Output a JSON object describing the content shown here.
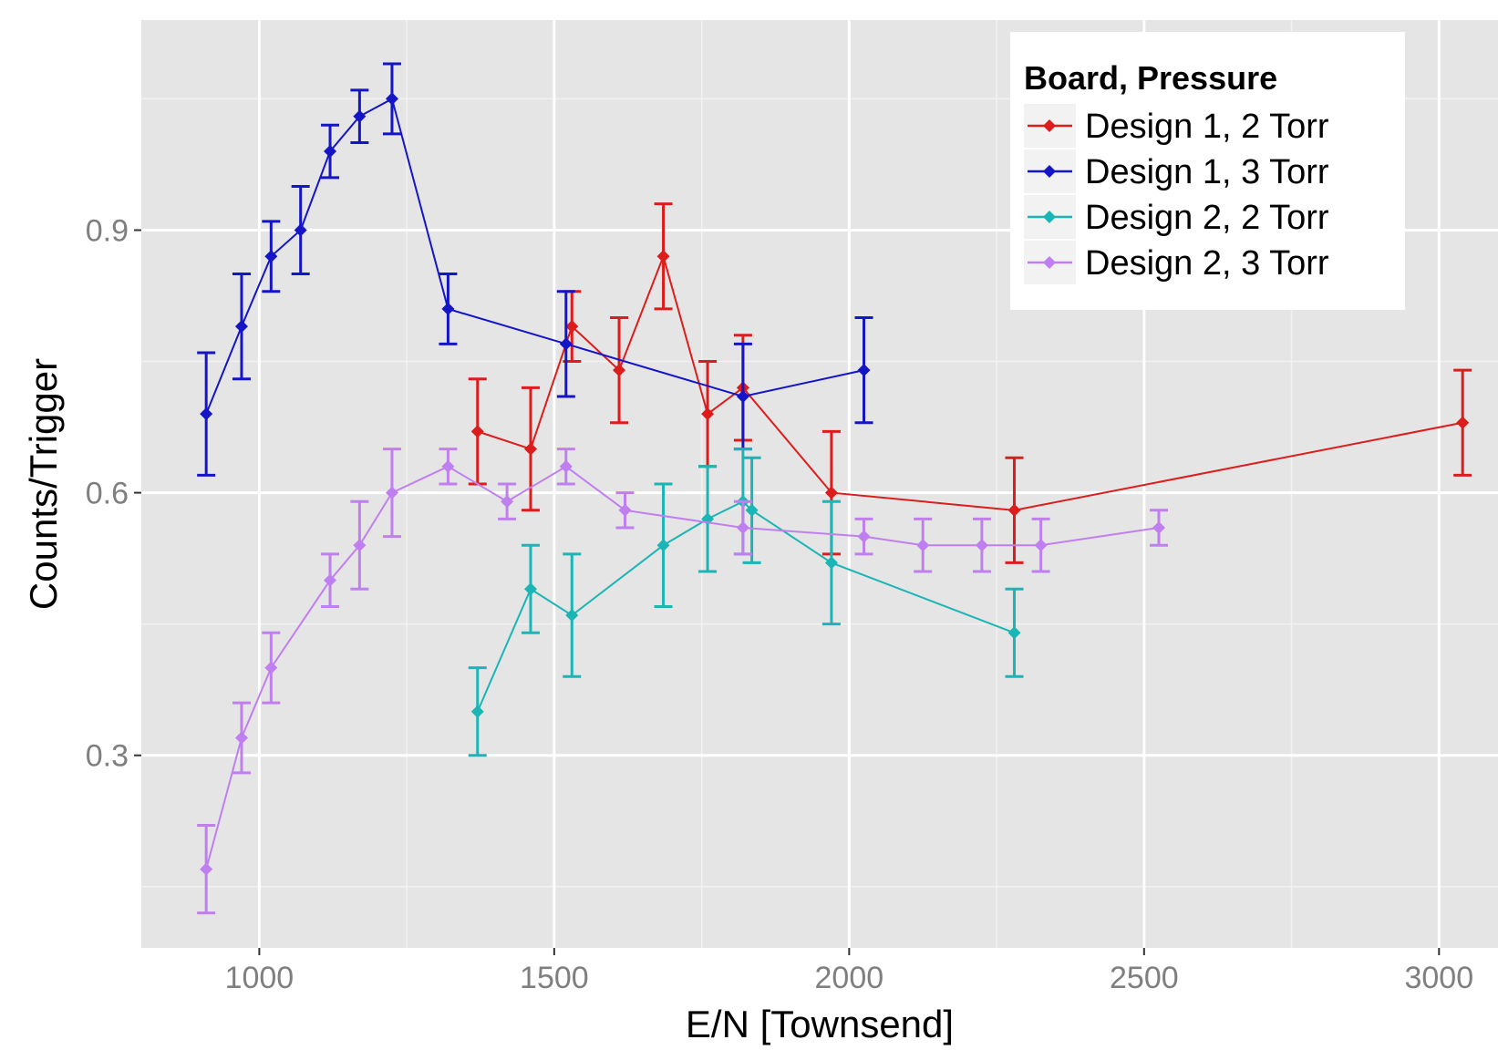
{
  "chart_data": {
    "type": "line",
    "title": "",
    "xlabel": "E/N [Townsend]",
    "ylabel": "Counts/Trigger",
    "xlim": [
      800,
      3100
    ],
    "ylim": [
      0.08,
      1.14
    ],
    "xticks": [
      1000,
      1500,
      2000,
      2500,
      3000
    ],
    "xtick_labels": [
      "1000",
      "1500",
      "2000",
      "2500",
      "3000"
    ],
    "yticks": [
      0.3,
      0.6,
      0.9
    ],
    "ytick_labels": [
      "0.3",
      "0.6",
      "0.9"
    ],
    "grid": true,
    "legend": {
      "title": "Board, Pressure",
      "placement": "top-right"
    },
    "series": [
      {
        "name": "Design 1, 2 Torr",
        "color": "#dd1c1c",
        "x": [
          1370,
          1460,
          1530,
          1610,
          1685,
          1760,
          1820,
          1970,
          2280,
          3040
        ],
        "y": [
          0.67,
          0.65,
          0.79,
          0.74,
          0.87,
          0.69,
          0.72,
          0.6,
          0.58,
          0.68
        ],
        "err": [
          0.06,
          0.07,
          0.04,
          0.06,
          0.06,
          0.06,
          0.06,
          0.07,
          0.06,
          0.06
        ]
      },
      {
        "name": "Design 1, 3 Torr",
        "color": "#1515c8",
        "x": [
          910,
          970,
          1020,
          1070,
          1120,
          1170,
          1225,
          1320,
          1520,
          1820,
          2025
        ],
        "y": [
          0.69,
          0.79,
          0.87,
          0.9,
          0.99,
          1.03,
          1.05,
          0.81,
          0.77,
          0.71,
          0.74
        ],
        "err": [
          0.07,
          0.06,
          0.04,
          0.05,
          0.03,
          0.03,
          0.04,
          0.04,
          0.06,
          0.06,
          0.06
        ]
      },
      {
        "name": "Design 2, 2 Torr",
        "color": "#1bb5b5",
        "x": [
          1370,
          1460,
          1530,
          1685,
          1760,
          1820,
          1835,
          1970,
          2280
        ],
        "y": [
          0.35,
          0.49,
          0.46,
          0.54,
          0.57,
          0.59,
          0.58,
          0.52,
          0.44
        ],
        "err": [
          0.05,
          0.05,
          0.07,
          0.07,
          0.06,
          0.06,
          0.06,
          0.07,
          0.05
        ]
      },
      {
        "name": "Design 2, 3 Torr",
        "color": "#c07ff0",
        "x": [
          910,
          970,
          1020,
          1120,
          1170,
          1225,
          1320,
          1420,
          1520,
          1620,
          1820,
          2025,
          2125,
          2225,
          2325,
          2525
        ],
        "y": [
          0.17,
          0.32,
          0.4,
          0.5,
          0.54,
          0.6,
          0.63,
          0.59,
          0.63,
          0.58,
          0.56,
          0.55,
          0.54,
          0.54,
          0.54,
          0.56
        ],
        "err": [
          0.05,
          0.04,
          0.04,
          0.03,
          0.05,
          0.05,
          0.02,
          0.02,
          0.02,
          0.02,
          0.03,
          0.02,
          0.03,
          0.03,
          0.03,
          0.02
        ]
      }
    ]
  }
}
